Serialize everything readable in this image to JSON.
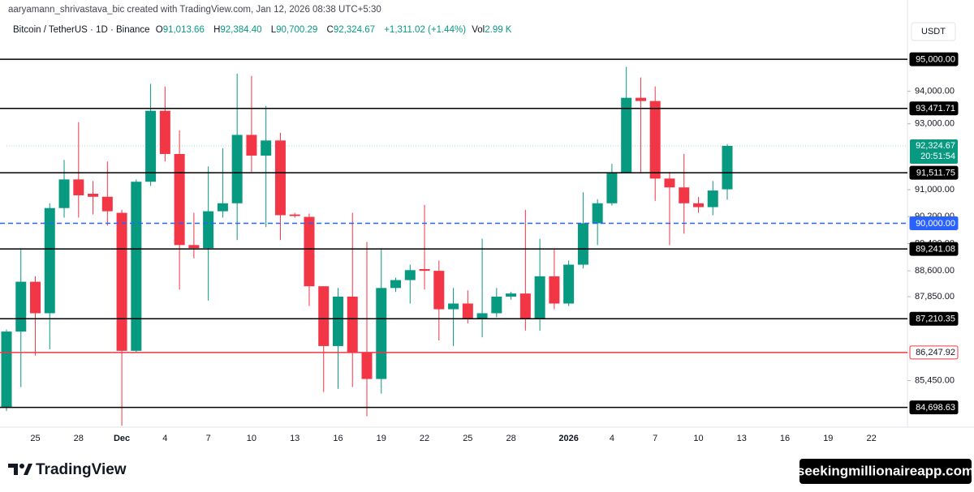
{
  "header": {
    "attribution": "aaryamann_shrivastava_bic created with TradingView.com, Jan 12, 2026 08:38 UTC+5:30",
    "symbol": "Bitcoin / TetherUS · 1D · Binance",
    "ohlc": [
      {
        "key": "O",
        "value": "91,013.66"
      },
      {
        "key": "H",
        "value": "92,384.40"
      },
      {
        "key": "L",
        "value": "90,700.29"
      },
      {
        "key": "C",
        "value": "92,324.67"
      }
    ],
    "change": "+1,311.02 (+1.44%)",
    "volume": {
      "key": "Vol",
      "value": "2.99 K"
    },
    "currency": "USDT"
  },
  "chart_data": {
    "type": "candlestick",
    "log_scale": true,
    "up_color": "#089981",
    "down_color": "#f23645",
    "categories": [
      null,
      null,
      "25",
      null,
      null,
      "28",
      null,
      null,
      "Dec",
      null,
      null,
      "4",
      null,
      null,
      "7",
      null,
      null,
      "10",
      null,
      null,
      "13",
      null,
      null,
      "16",
      null,
      null,
      "19",
      null,
      null,
      "22",
      null,
      null,
      "25",
      null,
      null,
      "28",
      null,
      null,
      null,
      "2026",
      null,
      null,
      "4",
      null,
      null,
      "7",
      null,
      null,
      "10",
      null,
      null,
      "13",
      null,
      null,
      "16",
      null,
      null,
      "19",
      null,
      null,
      "22",
      null,
      null
    ],
    "open": [
      84700,
      86844,
      88282,
      87370,
      90452,
      91310,
      90880,
      90790,
      90310,
      86294,
      91240,
      93400,
      92079,
      89356,
      89265,
      90357,
      90595,
      92660,
      92030,
      92490,
      90260,
      90190,
      88150,
      86430,
      87850,
      86248,
      85497,
      88100,
      88330,
      88650,
      88600,
      87485,
      87650,
      87210,
      87370,
      87850,
      87940,
      87210,
      88440,
      87650,
      88780,
      90000,
      90595,
      91512,
      93800,
      93700,
      91336,
      91070,
      90595,
      90480,
      91013.66,
      null,
      null,
      null,
      null,
      null,
      null,
      null,
      null,
      null,
      null,
      null,
      null
    ],
    "high": [
      86900,
      89265,
      88440,
      90595,
      91900,
      93050,
      91262,
      91850,
      90400,
      91310,
      94230,
      94150,
      92800,
      90310,
      91700,
      92250,
      94550,
      94480,
      93550,
      92730,
      90310,
      90290,
      88150,
      88100,
      90310,
      89450,
      89265,
      88400,
      88780,
      90548,
      88900,
      88100,
      88030,
      89540,
      88100,
      87985,
      90400,
      89540,
      89241,
      88900,
      90925,
      90715,
      91780,
      94760,
      94430,
      94150,
      91535,
      92079,
      90785,
      91262,
      92384.4,
      null,
      null,
      null,
      null,
      null,
      null,
      null,
      null,
      null,
      null,
      null,
      null
    ],
    "low": [
      84600,
      85270,
      86160,
      86340,
      90167,
      90167,
      90262,
      89930,
      84190,
      86250,
      91120,
      91850,
      88055,
      88965,
      87735,
      90167,
      89500,
      91535,
      89885,
      89500,
      90167,
      87580,
      85130,
      85220,
      85270,
      84450,
      85085,
      87985,
      87650,
      88055,
      86590,
      86430,
      87075,
      86680,
      87255,
      87760,
      86870,
      86870,
      87485,
      87580,
      88670,
      89356,
      90525,
      91512,
      91512,
      90666,
      89356,
      89690,
      90310,
      90240,
      90700.29,
      null,
      null,
      null,
      null,
      null,
      null,
      null,
      null,
      null,
      null,
      null,
      null
    ],
    "close": [
      86844,
      88282,
      87370,
      90452,
      91310,
      90833,
      90790,
      90357,
      86294,
      91240,
      93400,
      92079,
      89356,
      89265,
      90357,
      90595,
      92660,
      92030,
      92490,
      90240,
      90215,
      88150,
      86430,
      87850,
      86248,
      85497,
      88100,
      88330,
      88620,
      88600,
      87485,
      87650,
      87210,
      87370,
      87850,
      87940,
      87210,
      88440,
      87650,
      88780,
      90000,
      90595,
      91512,
      93800,
      93700,
      91336,
      91070,
      90595,
      90480,
      90976,
      92324.67,
      null,
      null,
      null,
      null,
      null,
      null,
      null,
      null,
      null,
      null,
      null,
      null
    ],
    "ylim": [
      84150,
      95460
    ],
    "yticks": [
      {
        "value": 94000,
        "label": "94,000.00"
      },
      {
        "value": 93000,
        "label": "93,000.00"
      },
      {
        "value": 91000,
        "label": "91,000.00"
      },
      {
        "value": 90200,
        "label": "90,200.00"
      },
      {
        "value": 89400,
        "label": "89,400.00"
      },
      {
        "value": 88600,
        "label": "88,600.00"
      },
      {
        "value": 87850,
        "label": "87,850.00"
      },
      {
        "value": 85450,
        "label": "85,450.00"
      }
    ],
    "levels": [
      {
        "value": 95000,
        "label": "95,000.00",
        "color": "#000000"
      },
      {
        "value": 93471.71,
        "label": "93,471.71",
        "color": "#000000"
      },
      {
        "value": 91511.75,
        "label": "91,511.75",
        "color": "#000000"
      },
      {
        "value": 90000,
        "label": "90,000.00",
        "color": "#2962ff",
        "dashed": true
      },
      {
        "value": 89241.08,
        "label": "89,241.08",
        "color": "#000000"
      },
      {
        "value": 87210.35,
        "label": "87,210.35",
        "color": "#000000"
      },
      {
        "value": 86247.92,
        "label": "86,247.92",
        "color": "#f23645"
      },
      {
        "value": 84698.63,
        "label": "84,698.63",
        "color": "#000000"
      }
    ],
    "last_price": {
      "value": 92324.67,
      "label": "92,324.67",
      "countdown": "20:51:54",
      "color": "#089981"
    }
  },
  "footer": {
    "logo": "TradingView",
    "watermark": "seekingmillionaireapp.com"
  }
}
